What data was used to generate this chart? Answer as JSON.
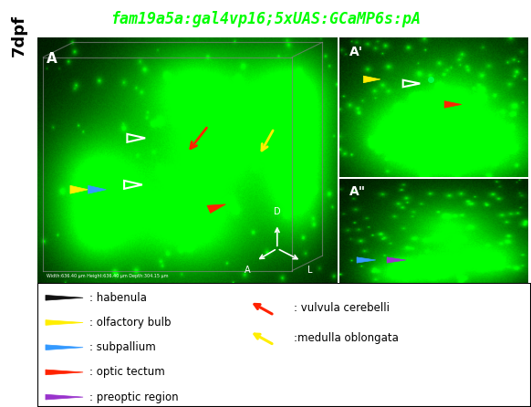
{
  "title": "fam19a5a:gal4vp16;5xUAS:GCaMP6s:pA",
  "title_color": "#00ff00",
  "title_fontsize": 12,
  "title_style": "italic",
  "title_weight": "bold",
  "outer_background": "#ffffff",
  "label_7dpf": "7dpf",
  "panel_A_label": "A",
  "panel_A2_label": "A'",
  "panel_A3_label": "A\"",
  "legend_items_left": [
    {
      "color": "#111111",
      "text": ": habenula"
    },
    {
      "color": "#ffee00",
      "text": ": olfactory bulb"
    },
    {
      "color": "#3399ff",
      "text": ": subpallium"
    },
    {
      "color": "#ff2200",
      "text": ": optic tectum"
    },
    {
      "color": "#9933cc",
      "text": ": preoptic region"
    }
  ],
  "legend_items_right": [
    {
      "color": "#ff2200",
      "text": ": vulvula cerebelli"
    },
    {
      "color": "#ffee00",
      "text": ":medulla oblongata"
    }
  ],
  "fig_width": 5.82,
  "fig_height": 4.46,
  "dpi": 100
}
